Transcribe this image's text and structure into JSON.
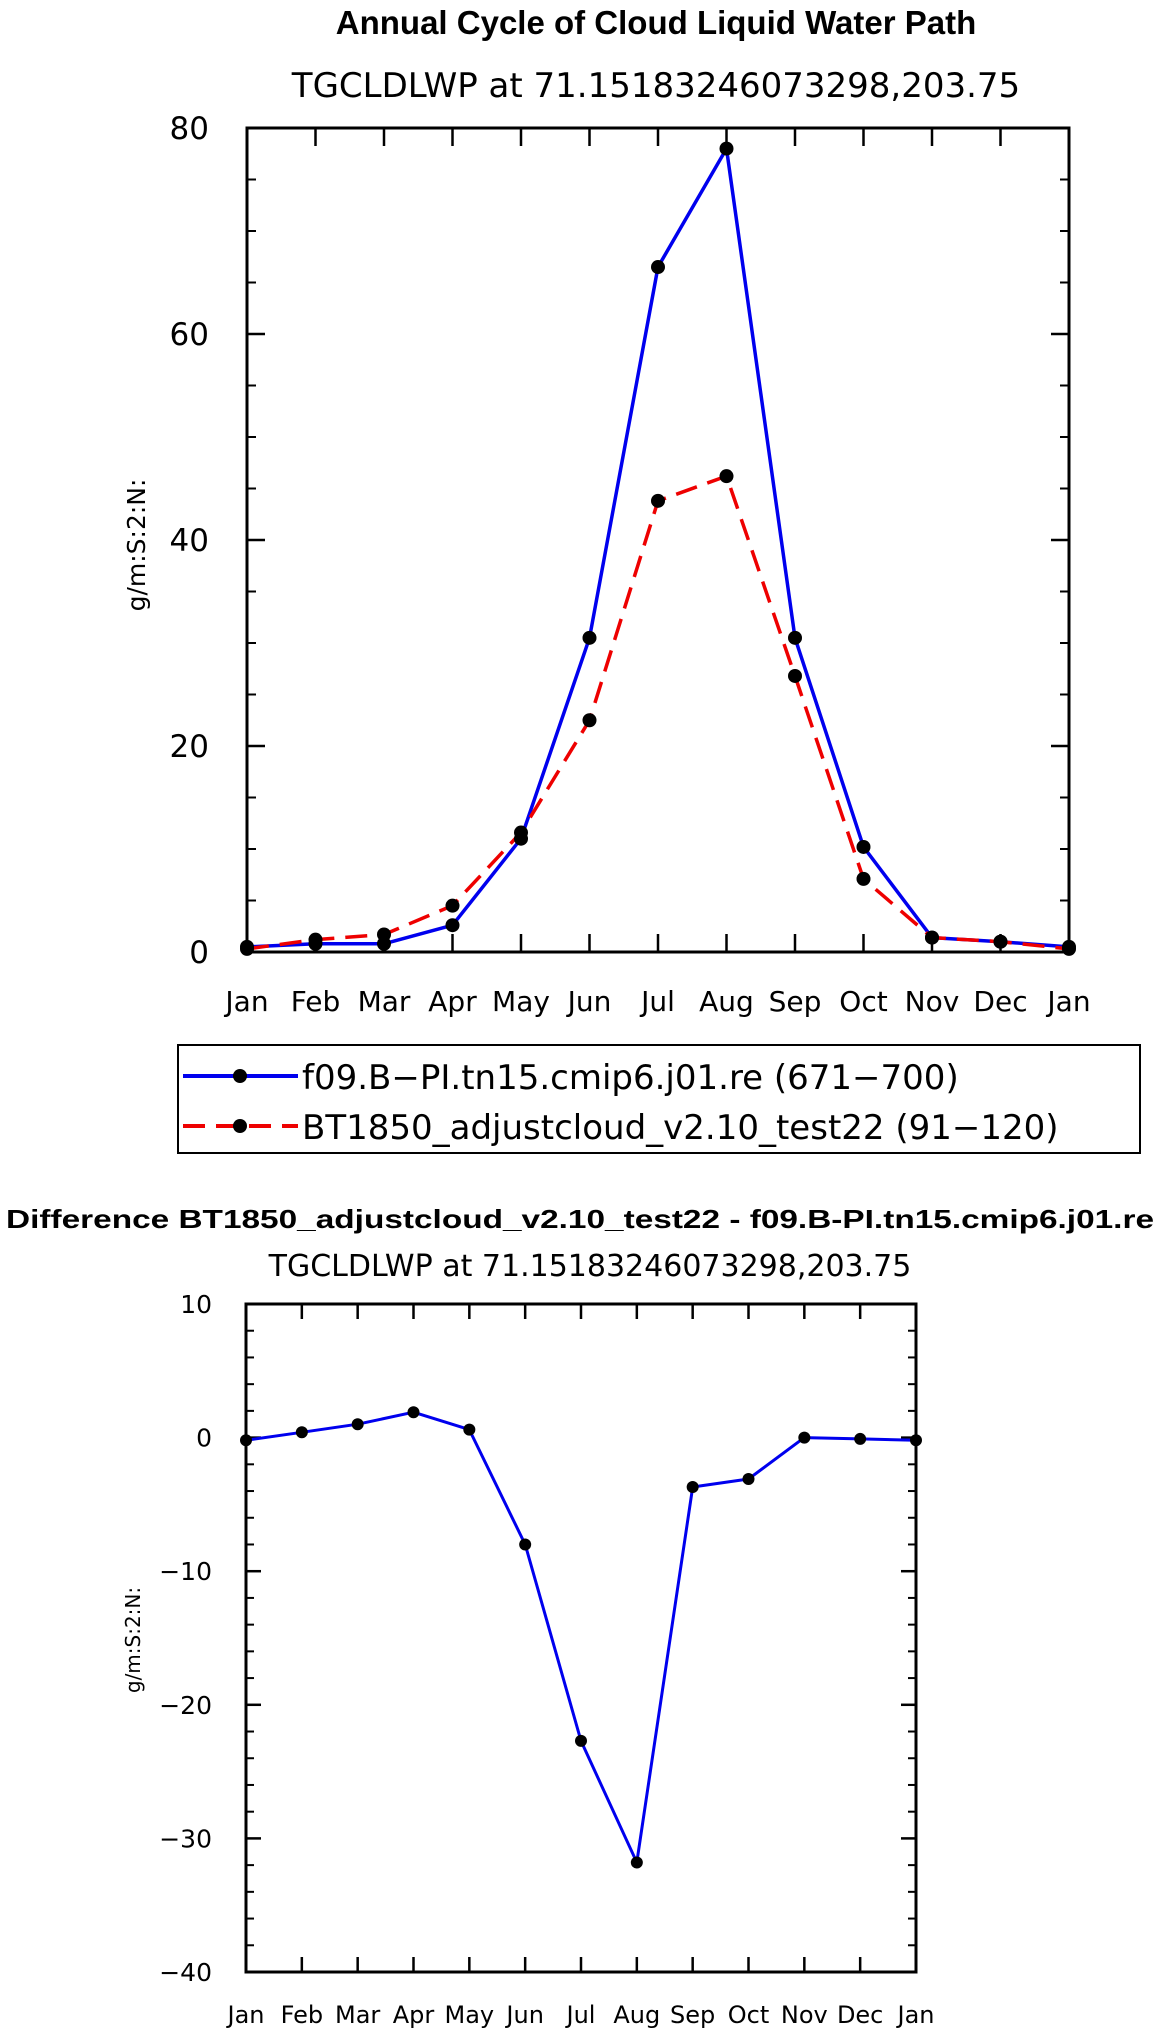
{
  "chart_data": [
    {
      "type": "line",
      "title": "Annual Cycle of Cloud Liquid Water Path",
      "subtitle": "TGCLDLWP at 71.15183246073298,203.75",
      "xlabel": "",
      "ylabel": "g/m:S:2:N:",
      "categories": [
        "Jan",
        "Feb",
        "Mar",
        "Apr",
        "May",
        "Jun",
        "Jul",
        "Aug",
        "Sep",
        "Oct",
        "Nov",
        "Dec",
        "Jan"
      ],
      "ylim": [
        0,
        80
      ],
      "yticks": [
        0,
        20,
        40,
        60,
        80
      ],
      "grid": false,
      "legend_position": "bottom",
      "series": [
        {
          "name": "f09.B−PI.tn15.cmip6.j01.re (671−700)",
          "color": "#0000ee",
          "dash": "solid",
          "values": [
            0.5,
            0.8,
            0.8,
            2.6,
            11.0,
            30.5,
            66.5,
            78.0,
            30.5,
            10.2,
            1.4,
            1.0,
            0.5
          ]
        },
        {
          "name": "BT1850_adjustcloud_v2.10_test22 (91−120)",
          "color": "#ee0000",
          "dash": "dashed",
          "values": [
            0.3,
            1.2,
            1.7,
            4.5,
            11.6,
            22.5,
            43.8,
            46.2,
            26.8,
            7.1,
            1.4,
            1.0,
            0.3
          ]
        }
      ]
    },
    {
      "type": "line",
      "title": "Difference BT1850_adjustcloud_v2.10_test22 - f09.B-PI.tn15.cmip6.j01.re",
      "subtitle": "TGCLDLWP at 71.15183246073298,203.75",
      "xlabel": "",
      "ylabel": "g/m:S:2:N:",
      "categories": [
        "Jan",
        "Feb",
        "Mar",
        "Apr",
        "May",
        "Jun",
        "Jul",
        "Aug",
        "Sep",
        "Oct",
        "Nov",
        "Dec",
        "Jan"
      ],
      "ylim": [
        -40,
        10
      ],
      "yticks": [
        -40,
        -30,
        -20,
        -10,
        0,
        10
      ],
      "grid": false,
      "series": [
        {
          "name": "Difference",
          "color": "#0000ee",
          "dash": "solid",
          "values": [
            -0.2,
            0.4,
            1.0,
            1.9,
            0.6,
            -8.0,
            -22.7,
            -31.8,
            -3.7,
            -3.1,
            0.0,
            -0.1,
            -0.2
          ]
        }
      ]
    }
  ]
}
